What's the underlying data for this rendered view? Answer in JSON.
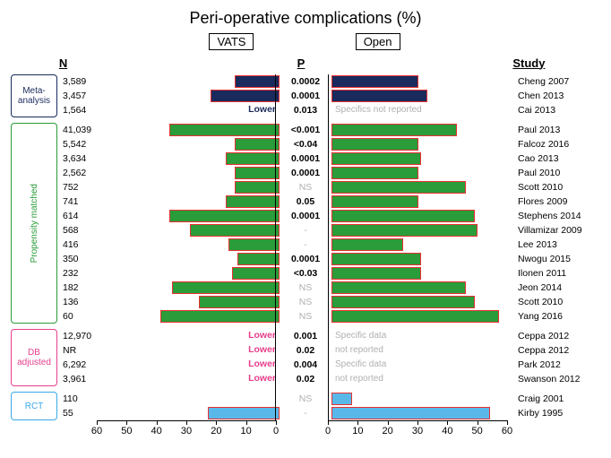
{
  "title": "Peri-operative complications (%)",
  "left_label": "VATS",
  "right_label": "Open",
  "col_n": "N",
  "col_p": "P",
  "col_study": "Study",
  "lower_text": "Lower",
  "axis_max": 60,
  "axis_ticks": [
    0,
    10,
    20,
    30,
    40,
    50,
    60
  ],
  "categories": [
    {
      "key": "meta",
      "label": "Meta-\nanalysis",
      "vertical": false,
      "color": "#1a2a5c",
      "text_color": "#1a2a5c"
    },
    {
      "key": "prop",
      "label": "Propensity matched",
      "vertical": true,
      "color": "#2a9c3a",
      "text_color": "#2a9c3a"
    },
    {
      "key": "db",
      "label": "DB\nadjusted",
      "vertical": false,
      "color": "#e83e8c",
      "text_color": "#e83e8c"
    },
    {
      "key": "rct",
      "label": "RCT",
      "vertical": false,
      "color": "#3aa8e8",
      "text_color": "#3aa8e8"
    }
  ],
  "rows": [
    {
      "cat": "meta",
      "n": "3,589",
      "p": "0.0002",
      "study": "Cheng 2007",
      "vats": 15,
      "open": 29,
      "fill": "#1a2a5c",
      "stroke": "#e83030"
    },
    {
      "cat": "meta",
      "n": "3,457",
      "p": "0.0001",
      "study": "Chen 2013",
      "vats": 23,
      "open": 32,
      "fill": "#1a2a5c",
      "stroke": "#e83030"
    },
    {
      "cat": "meta",
      "n": "1,564",
      "p": "0.013",
      "study": "Cai 2013",
      "vats": null,
      "open": null,
      "fill": "#1a2a5c",
      "stroke": "#e83030",
      "lower_left": true,
      "lower_color": "#1a2a5c",
      "note": "Specifics not reported"
    },
    {
      "cat": "prop",
      "n": "41,039",
      "p": "<0.001",
      "study": "Paul 2013",
      "vats": 37,
      "open": 42,
      "fill": "#2a9c3a",
      "stroke": "#e83030"
    },
    {
      "cat": "prop",
      "n": "5,542",
      "p": "<0.04",
      "study": "Falcoz 2016",
      "vats": 15,
      "open": 29,
      "fill": "#2a9c3a",
      "stroke": "#e83030"
    },
    {
      "cat": "prop",
      "n": "3,634",
      "p": "0.0001",
      "study": "Cao 2013",
      "vats": 18,
      "open": 30,
      "fill": "#2a9c3a",
      "stroke": "#e83030"
    },
    {
      "cat": "prop",
      "n": "2,562",
      "p": "0.0001",
      "study": "Paul 2010",
      "vats": 15,
      "open": 29,
      "fill": "#2a9c3a",
      "stroke": "#e83030"
    },
    {
      "cat": "prop",
      "n": "752",
      "p": "NS",
      "p_ns": true,
      "study": "Scott 2010",
      "vats": 15,
      "open": 45,
      "fill": "#2a9c3a",
      "stroke": "#e83030"
    },
    {
      "cat": "prop",
      "n": "741",
      "p": "0.05",
      "study": "Flores 2009",
      "vats": 18,
      "open": 29,
      "fill": "#2a9c3a",
      "stroke": "#e83030"
    },
    {
      "cat": "prop",
      "n": "614",
      "p": "0.0001",
      "study": "Stephens 2014",
      "vats": 37,
      "open": 48,
      "fill": "#2a9c3a",
      "stroke": "#e83030"
    },
    {
      "cat": "prop",
      "n": "568",
      "p": "-",
      "p_ns": true,
      "study": "Villamizar 2009",
      "vats": 30,
      "open": 49,
      "fill": "#2a9c3a",
      "stroke": "#e83030"
    },
    {
      "cat": "prop",
      "n": "416",
      "p": "-",
      "p_ns": true,
      "study": "Lee 2013",
      "vats": 17,
      "open": 24,
      "fill": "#2a9c3a",
      "stroke": "#e83030"
    },
    {
      "cat": "prop",
      "n": "350",
      "p": "0.0001",
      "study": "Nwogu 2015",
      "vats": 14,
      "open": 30,
      "fill": "#2a9c3a",
      "stroke": "#e83030"
    },
    {
      "cat": "prop",
      "n": "232",
      "p": "<0.03",
      "study": "Ilonen 2011",
      "vats": 16,
      "open": 30,
      "fill": "#2a9c3a",
      "stroke": "#e83030"
    },
    {
      "cat": "prop",
      "n": "182",
      "p": "NS",
      "p_ns": true,
      "study": "Jeon 2014",
      "vats": 36,
      "open": 45,
      "fill": "#2a9c3a",
      "stroke": "#e83030"
    },
    {
      "cat": "prop",
      "n": "136",
      "p": "NS",
      "p_ns": true,
      "study": "Scott 2010",
      "vats": 27,
      "open": 48,
      "fill": "#2a9c3a",
      "stroke": "#e83030"
    },
    {
      "cat": "prop",
      "n": "60",
      "p": "NS",
      "p_ns": true,
      "study": "Yang 2016",
      "vats": 40,
      "open": 56,
      "fill": "#2a9c3a",
      "stroke": "#e83030"
    },
    {
      "cat": "db",
      "n": "12,970",
      "p": "0.001",
      "study": "Ceppa 2012",
      "vats": null,
      "open": null,
      "lower_left": true,
      "lower_color": "#e83e8c",
      "note": "Specific data"
    },
    {
      "cat": "db",
      "n": "NR",
      "p": "0.02",
      "study": "Ceppa 2012",
      "vats": null,
      "open": null,
      "lower_left": true,
      "lower_color": "#e83e8c",
      "note": "not reported"
    },
    {
      "cat": "db",
      "n": "6,292",
      "p": "0.004",
      "study": "Park 2012",
      "vats": null,
      "open": null,
      "lower_left": true,
      "lower_color": "#e83e8c",
      "note": "Specific data"
    },
    {
      "cat": "db",
      "n": "3,961",
      "p": "0.02",
      "study": "Swanson 2012",
      "vats": null,
      "open": null,
      "lower_left": true,
      "lower_color": "#e83e8c",
      "note": "not reported"
    },
    {
      "cat": "rct",
      "n": "110",
      "p": "NS",
      "p_ns": true,
      "study": "Craig 2001",
      "vats": 0,
      "open": 7,
      "fill": "#5ab8e8",
      "stroke": "#e83030"
    },
    {
      "cat": "rct",
      "n": "55",
      "p": "-",
      "p_ns": true,
      "study": "Kirby 1995",
      "vats": 24,
      "open": 53,
      "fill": "#5ab8e8",
      "stroke": "#e83030"
    }
  ]
}
